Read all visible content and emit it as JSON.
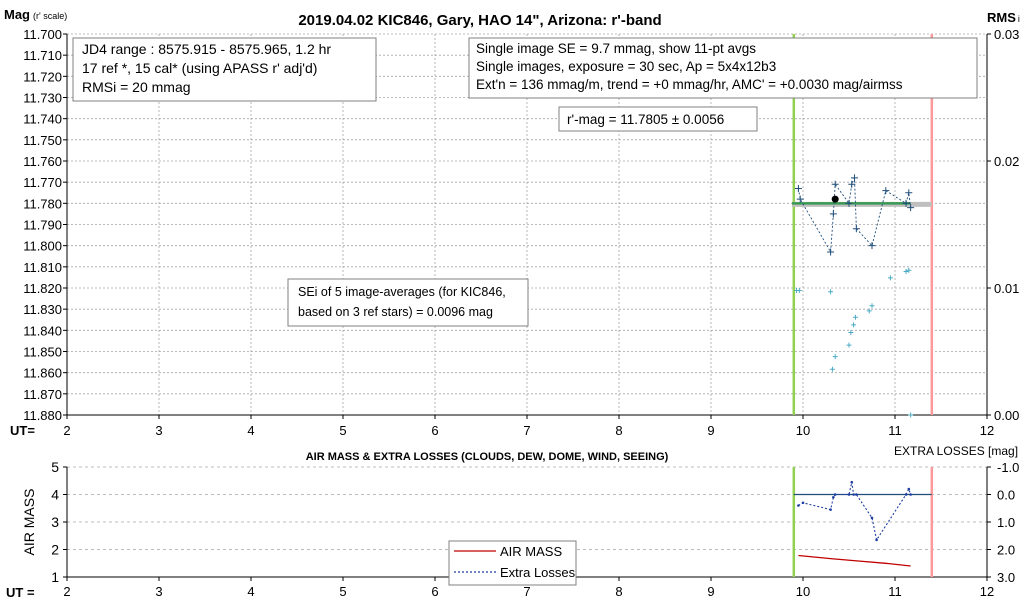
{
  "chart_data": [
    {
      "type": "scatter",
      "title": "2019.04.02 KIC846, Gary, HAO 14\", Arizona: r'-band",
      "ylabel_main": "Mag",
      "ylabel_sub": "(r' scale)",
      "y2label_main": "RMS",
      "y2label_sub": "i",
      "xlabel": "UT=",
      "xlim": [
        2,
        12
      ],
      "ylim": [
        11.88,
        11.7
      ],
      "y2lim": [
        0.0,
        0.03
      ],
      "x_ticks": [
        "2",
        "3",
        "4",
        "5",
        "6",
        "7",
        "8",
        "9",
        "10",
        "11",
        "12"
      ],
      "y_ticks": [
        "11.700",
        "11.710",
        "11.720",
        "11.730",
        "11.740",
        "11.750",
        "11.760",
        "11.770",
        "11.780",
        "11.790",
        "11.800",
        "11.810",
        "11.820",
        "11.830",
        "11.840",
        "11.850",
        "11.860",
        "11.870",
        "11.880"
      ],
      "y2_ticks": [
        "0.03",
        "0.02",
        "0.01",
        "0.00"
      ],
      "grid": "x and y dotted",
      "info_left": [
        "JD4 range : 8575.915 - 8575.965,  1.2  hr",
        "17 ref *, 15 cal* (using APASS r' adj'd)",
        "RMSi = 20 mmag"
      ],
      "info_right": [
        "Single image SE = 9.7 mmag, show  11-pt avgs",
        "Single images, exposure = 30 sec, Ap = 5x4x12b3",
        "Ext'n = 136 mmag/m, trend =  +0 mmag/hr, AMC' = +0.0030 mag/airmss"
      ],
      "rmag_box": "r'-mag = 11.7805 ± 0.0056",
      "sei_box": [
        "SEi of 5 image-averages (for KIC846,",
        "based on 3 ref stars) = 0.0096 mag"
      ],
      "vlines": [
        {
          "x": 9.9,
          "color": "#92d050"
        },
        {
          "x": 11.4,
          "color": "#ff9999"
        }
      ],
      "mean_mag": 11.7805,
      "mean_x_range": [
        9.88,
        11.4
      ],
      "mean_point": {
        "x": 10.35,
        "y": 11.778
      },
      "series": [
        {
          "color": "#1f4e79",
          "style": "dashed-line with plus markers",
          "x": [
            9.95,
            9.97,
            10.3,
            10.33,
            10.35,
            10.5,
            10.53,
            10.56,
            10.58,
            10.75,
            10.9,
            11.12,
            11.15,
            11.17
          ],
          "y": [
            11.773,
            11.778,
            11.803,
            11.785,
            11.771,
            11.78,
            11.771,
            11.768,
            11.792,
            11.8,
            11.774,
            11.78,
            11.775,
            11.782
          ]
        },
        {
          "color": "#4bacc6",
          "style": "plus markers, right axis",
          "x": [
            9.93,
            9.96,
            10.3,
            10.32,
            10.35,
            10.5,
            10.52,
            10.55,
            10.57,
            10.72,
            10.75,
            10.95,
            11.12,
            11.15,
            11.17
          ],
          "y2": [
            0.0098,
            0.0098,
            0.0097,
            0.0036,
            0.0046,
            0.0055,
            0.0065,
            0.0071,
            0.0077,
            0.0082,
            0.0086,
            0.0108,
            0.0113,
            0.0114,
            0.0
          ]
        }
      ]
    },
    {
      "type": "line",
      "title": "AIR MASS & EXTRA LOSSES (CLOUDS, DEW, DOME, WIND, SEEING)",
      "ylabel": "AIR MASS",
      "y2label": "EXTRA LOSSES [mag]",
      "xlabel": "UT =",
      "xlim": [
        2,
        12
      ],
      "ylim": [
        1,
        5
      ],
      "y2lim": [
        3.0,
        -1.0
      ],
      "x_ticks": [
        "2",
        "3",
        "4",
        "5",
        "6",
        "7",
        "8",
        "9",
        "10",
        "11",
        "12"
      ],
      "y_ticks": [
        "1",
        "2",
        "3",
        "4",
        "5"
      ],
      "y2_ticks": [
        "-1.0",
        "0.0",
        "1.0",
        "2.0",
        "3.0"
      ],
      "grid": "y dashed",
      "legend": [
        "AIR MASS",
        "Extra Losses"
      ],
      "vlines": [
        {
          "x": 9.9,
          "color": "#92d050"
        },
        {
          "x": 11.4,
          "color": "#ff9999"
        }
      ],
      "zero_line": {
        "x_range": [
          9.9,
          11.4
        ],
        "y2": 0.0,
        "color": "#1f4e79"
      },
      "series": [
        {
          "name": "AIR MASS",
          "color": "#c00000",
          "x": [
            9.95,
            10.3,
            10.6,
            10.9,
            11.17
          ],
          "y": [
            1.78,
            1.67,
            1.58,
            1.5,
            1.4
          ]
        },
        {
          "name": "Extra Losses",
          "color": "#1f3fa0",
          "x": [
            9.95,
            10.0,
            10.3,
            10.33,
            10.35,
            10.5,
            10.53,
            10.55,
            10.58,
            10.75,
            10.8,
            11.12,
            11.15,
            11.17
          ],
          "y2": [
            0.4,
            0.3,
            0.55,
            0.1,
            0.0,
            0.0,
            -0.45,
            0.0,
            0.0,
            0.85,
            1.65,
            0.0,
            -0.2,
            0.0
          ]
        }
      ]
    }
  ]
}
